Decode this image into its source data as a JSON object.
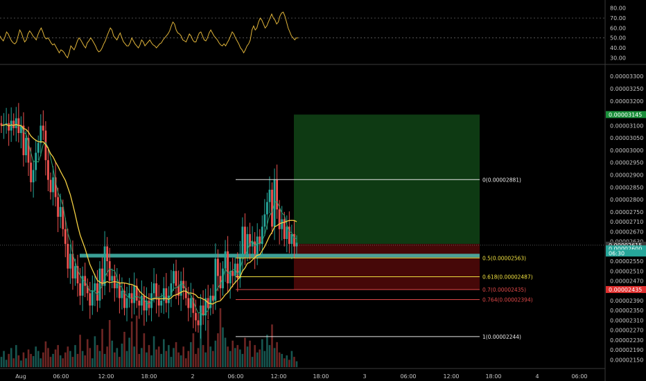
{
  "chart_data": [
    {
      "type": "line",
      "panel": "oscillator",
      "y_ticks": [
        "80.00",
        "70.00",
        "60.00",
        "50.00",
        "40.00",
        "30.00"
      ],
      "ylim": [
        24,
        84
      ],
      "reference_lines": [
        70,
        50
      ],
      "series": [
        {
          "color": "#e0b43a",
          "values": [
            52,
            49,
            47,
            51,
            56,
            54,
            50,
            47,
            45,
            44,
            46,
            52,
            58,
            55,
            50,
            46,
            48,
            54,
            57,
            55,
            52,
            50,
            48,
            53,
            57,
            60,
            56,
            51,
            49,
            50,
            48,
            45,
            43,
            44,
            41,
            38,
            35,
            38,
            37,
            35,
            32,
            30,
            35,
            42,
            40,
            38,
            42,
            47,
            50,
            48,
            45,
            42,
            40,
            45,
            47,
            50,
            48,
            45,
            42,
            38,
            36,
            37,
            40,
            44,
            47,
            52,
            56,
            60,
            58,
            52,
            50,
            48,
            52,
            55,
            50,
            46,
            44,
            42,
            42,
            45,
            50,
            47,
            44,
            42,
            40,
            43,
            48,
            46,
            42,
            44,
            46,
            48,
            45,
            43,
            42,
            40,
            42,
            44,
            45,
            48,
            50,
            52,
            54,
            57,
            62,
            66,
            64,
            58,
            55,
            54,
            52,
            48,
            47,
            46,
            50,
            54,
            52,
            48,
            46,
            46,
            51,
            55,
            56,
            52,
            48,
            47,
            50,
            55,
            58,
            55,
            52,
            50,
            48,
            45,
            43,
            42,
            44,
            42,
            45,
            48,
            52,
            56,
            54,
            50,
            47,
            44,
            40,
            38,
            35,
            38,
            42,
            44,
            48,
            58,
            62,
            58,
            60,
            66,
            70,
            68,
            64,
            60,
            62,
            66,
            70,
            74,
            70,
            68,
            64,
            66,
            72,
            75,
            76,
            72,
            66,
            60,
            56,
            52,
            50,
            48,
            50,
            50
          ]
        }
      ]
    },
    {
      "type": "candlestick",
      "panel": "price",
      "x_tick_labels": [
        "Aug",
        "06:00",
        "12:00",
        "18:00",
        "2",
        "06:00",
        "12:00",
        "18:00",
        "3",
        "06:00",
        "12:00",
        "18:00",
        "4",
        "06:00"
      ],
      "y_tick_labels": [
        "0.00003300",
        "0.00003250",
        "0.00003200",
        "0.00003100",
        "0.00003050",
        "0.00003000",
        "0.00002950",
        "0.00002900",
        "0.00002850",
        "0.00002800",
        "0.00002750",
        "0.00002710",
        "0.00002670",
        "0.00002630",
        "0.00002550",
        "0.00002510",
        "0.00002470",
        "0.00002430",
        "0.00002390",
        "0.00002350",
        "0.00002310",
        "0.00002270",
        "0.00002230",
        "0.00002190",
        "0.00002150"
      ],
      "y_tick_values": [
        3.3e-05,
        3.25e-05,
        3.2e-05,
        3.1e-05,
        3.05e-05,
        3e-05,
        2.95e-05,
        2.9e-05,
        2.85e-05,
        2.8e-05,
        2.75e-05,
        2.71e-05,
        2.67e-05,
        2.63e-05,
        2.55e-05,
        2.51e-05,
        2.47e-05,
        2.43e-05,
        2.39e-05,
        2.35e-05,
        2.31e-05,
        2.27e-05,
        2.23e-05,
        2.19e-05,
        2.15e-05
      ],
      "ylim": [
        2.12e-05,
        3.34e-05
      ],
      "up_color": "#26a69a",
      "down_color": "#ef5350",
      "closes": [
        31.0,
        31.05,
        31.1,
        30.8,
        31.2,
        30.9,
        31.3,
        30.7,
        31.0,
        29.8,
        30.5,
        29.5,
        28.7,
        29.2,
        29.9,
        30.3,
        31.0,
        30.8,
        29.6,
        28.8,
        28.3,
        28.9,
        28.1,
        27.3,
        27.7,
        26.8,
        26.2,
        25.2,
        25.8,
        24.8,
        25.3,
        24.6,
        24.1,
        24.9,
        24.5,
        24.2,
        23.7,
        24.3,
        24.6,
        23.9,
        25.2,
        24.5,
        26.1,
        25.5,
        24.7,
        24.9,
        24.4,
        24.6,
        24.0,
        24.3,
        23.6,
        24.0,
        24.2,
        23.8,
        24.5,
        23.9,
        23.7,
        24.1,
        23.5,
        23.9,
        23.6,
        24.2,
        24.6,
        24.0,
        23.7,
        23.9,
        24.4,
        23.8,
        24.1,
        24.6,
        25.1,
        24.5,
        24.1,
        24.7,
        24.4,
        24.0,
        23.6,
        24.0,
        23.4,
        23.1,
        22.9,
        23.7,
        23.3,
        24.0,
        23.6,
        24.1,
        23.9,
        25.6,
        24.9,
        24.4,
        25.2,
        25.9,
        24.6,
        25.1,
        24.9,
        25.4,
        24.8,
        25.7,
        26.9,
        25.8,
        26.6,
        26.1,
        26.3,
        25.8,
        26.5,
        26.2,
        26.9,
        27.4,
        27.9,
        28.4,
        26.9,
        28.8,
        27.6,
        26.8,
        27.2,
        26.4,
        26.9,
        26.2,
        26.6,
        26.1,
        26.25
      ],
      "ma_fast_color": "#2e9e6f",
      "ma_slow_color": "#f5d142",
      "levels": [
        {
          "label": "0(0.00002881)",
          "price": 2.881e-05,
          "color": "#e8e8e8"
        },
        {
          "label": "0.5(0.00002563)",
          "price": 2.563e-05,
          "color": "#f0e040"
        },
        {
          "label": "0.618(0.00002487)",
          "price": 2.487e-05,
          "color": "#f0e040"
        },
        {
          "label": "0.7(0.00002435)",
          "price": 2.435e-05,
          "color": "#e04848"
        },
        {
          "label": "0.764(0.00002394)",
          "price": 2.394e-05,
          "color": "#e04848"
        },
        {
          "label": "1(0.00002244)",
          "price": 2.244e-05,
          "color": "#e8e8e8"
        }
      ],
      "support_zone": {
        "top": 2.58e-05,
        "bottom": 2.565e-05,
        "color": "#4fd6c8"
      },
      "position": {
        "target": 3.145e-05,
        "entry": 2.62e-05,
        "stop": 2.435e-05
      },
      "price_tags": [
        {
          "text": "0.00003145",
          "price": 3.145e-05,
          "bg": "#1a8f3a",
          "fg": "#ffffff"
        },
        {
          "text": "0.00002615",
          "price": 2.615e-05,
          "bg": "#3a3a3a",
          "fg": "#ffffff"
        },
        {
          "text": "0.00002600",
          "price": 2.6e-05,
          "bg": "#26a69a",
          "fg": "#ffffff"
        },
        {
          "text": "06:30",
          "price": 2.583e-05,
          "bg": "#26a69a",
          "fg": "#ffffff"
        },
        {
          "text": "0.00002435",
          "price": 2.435e-05,
          "bg": "#e0302f",
          "fg": "#ffffff"
        }
      ]
    },
    {
      "type": "bar",
      "panel": "volume",
      "values": [
        14,
        22,
        10,
        18,
        26,
        12,
        30,
        16,
        9,
        20,
        12,
        24,
        18,
        15,
        28,
        22,
        12,
        20,
        35,
        26,
        14,
        18,
        24,
        30,
        16,
        12,
        20,
        28,
        22,
        14,
        30,
        18,
        44,
        22,
        16,
        38,
        26,
        12,
        42,
        30,
        22,
        52,
        18,
        28,
        64,
        36,
        20,
        26,
        14,
        32,
        48,
        22,
        40,
        62,
        28,
        70,
        18,
        26,
        46,
        20,
        30,
        16,
        42,
        24,
        28,
        18,
        38,
        22,
        30,
        14,
        26,
        34,
        20,
        16,
        28,
        12,
        22,
        34,
        46,
        18,
        26,
        58,
        30,
        20,
        64,
        28,
        22,
        36,
        46,
        80,
        54,
        40,
        28,
        22,
        36,
        26,
        30,
        24,
        18,
        40,
        28,
        36,
        14,
        30,
        20,
        24,
        38,
        22,
        44,
        30,
        58,
        26,
        34,
        20,
        18,
        12,
        16,
        10,
        22,
        14,
        8
      ]
    }
  ]
}
